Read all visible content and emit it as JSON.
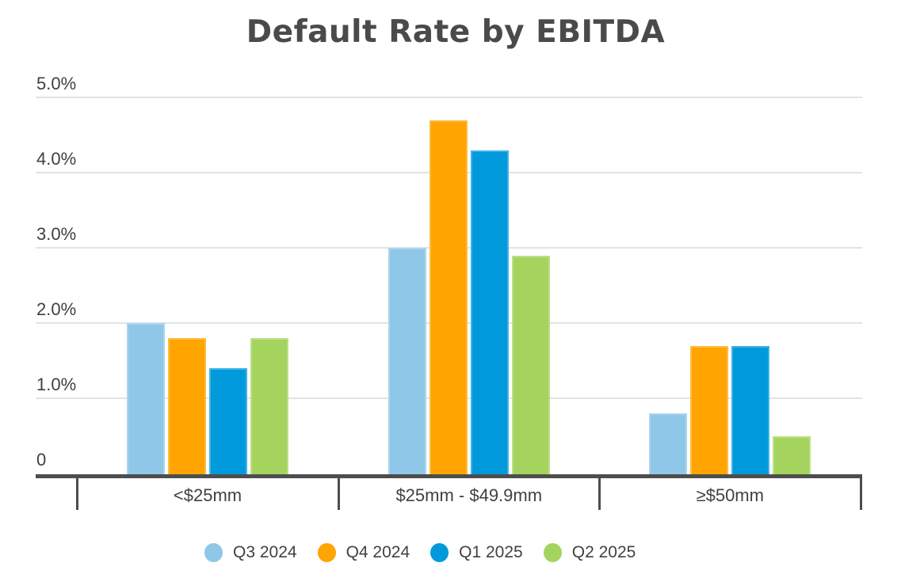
{
  "chart_data": {
    "type": "bar",
    "title": "Default Rate by EBITDA",
    "categories": [
      "<$25mm",
      "$25mm - $49.9mm",
      "≥$50mm"
    ],
    "series": [
      {
        "name": "Q3 2024",
        "color": "#8FC7E8",
        "values": [
          2.0,
          3.0,
          0.8
        ]
      },
      {
        "name": "Q4 2024",
        "color": "#FFA400",
        "values": [
          1.8,
          4.7,
          1.7
        ]
      },
      {
        "name": "Q1 2025",
        "color": "#009ADC",
        "values": [
          1.4,
          4.3,
          1.7
        ]
      },
      {
        "name": "Q2 2025",
        "color": "#A4D45E",
        "values": [
          1.8,
          2.9,
          0.5
        ]
      }
    ],
    "y_axis": {
      "unit": "percent",
      "ylim": [
        0,
        5.0
      ],
      "ticks": [
        {
          "label": "5.0%",
          "value": 5.0
        },
        {
          "label": "4.0%",
          "value": 4.0
        },
        {
          "label": "3.0%",
          "value": 3.0
        },
        {
          "label": "2.0%",
          "value": 2.0
        },
        {
          "label": "1.0%",
          "value": 1.0
        },
        {
          "label": "0",
          "value": 0.0
        }
      ]
    },
    "grid": "horizontal",
    "legend_position": "bottom",
    "colors": {
      "title_text": "#4A4A4A",
      "axis_text": "#414141",
      "axis_line": "#4D4D4D",
      "gridline": "#E3E3E3",
      "background": "#FFFFFF"
    }
  }
}
